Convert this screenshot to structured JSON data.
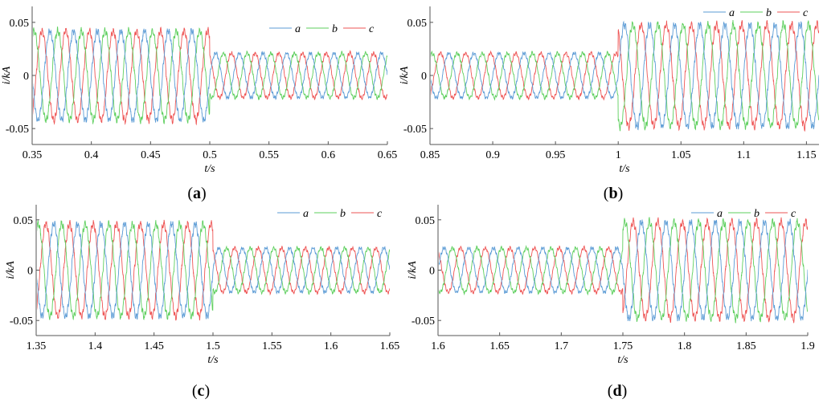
{
  "colors": {
    "a": "#5b9bd5",
    "b": "#5ecf5e",
    "c": "#ee5555",
    "axis": "#555555"
  },
  "chart_data": [
    {
      "type": "line",
      "panel": "(a)",
      "caption_letter": "a",
      "xlabel": "t/s",
      "ylabel": "i/kA",
      "xlim": [
        0.35,
        0.65
      ],
      "ylim": [
        -0.065,
        0.065
      ],
      "xticks": [
        0.35,
        0.4,
        0.45,
        0.5,
        0.55,
        0.6,
        0.65
      ],
      "xtick_labels": [
        "0.35",
        "0.4",
        "0.45",
        "0.5",
        "0.55",
        "0.6",
        "0.65"
      ],
      "yticks": [
        0.05,
        0,
        -0.05
      ],
      "ytick_labels": [
        "0.05",
        "0",
        "-0.05"
      ],
      "legend": [
        "a",
        "b",
        "c"
      ],
      "legend_position": "top-right",
      "frequency_hz": 50,
      "series": [
        {
          "name": "a",
          "phase_deg": 0,
          "segments": [
            {
              "from": 0.35,
              "to": 0.5,
              "amplitude": 0.042
            },
            {
              "from": 0.5,
              "to": 0.65,
              "amplitude": 0.021
            }
          ]
        },
        {
          "name": "b",
          "phase_deg": -120,
          "segments": [
            {
              "from": 0.35,
              "to": 0.5,
              "amplitude": 0.042
            },
            {
              "from": 0.5,
              "to": 0.65,
              "amplitude": 0.021
            }
          ]
        },
        {
          "name": "c",
          "phase_deg": 120,
          "segments": [
            {
              "from": 0.35,
              "to": 0.5,
              "amplitude": 0.042
            },
            {
              "from": 0.5,
              "to": 0.65,
              "amplitude": 0.021
            }
          ]
        }
      ]
    },
    {
      "type": "line",
      "panel": "(b)",
      "caption_letter": "b",
      "xlabel": "t/s",
      "ylabel": "i/kA",
      "xlim": [
        0.85,
        1.16
      ],
      "ylim": [
        -0.065,
        0.065
      ],
      "xticks": [
        0.85,
        0.9,
        0.95,
        1,
        1.05,
        1.1,
        1.15
      ],
      "xtick_labels": [
        "0.85",
        "0.9",
        "0.95",
        "1",
        "1.05",
        "1.1",
        "1.15"
      ],
      "yticks": [
        0.05,
        0,
        -0.05
      ],
      "ytick_labels": [
        "0.05",
        "0",
        "-0.05"
      ],
      "legend": [
        "a",
        "b",
        "c"
      ],
      "legend_position": "top-right",
      "frequency_hz": 50,
      "series": [
        {
          "name": "a",
          "phase_deg": 0,
          "segments": [
            {
              "from": 0.85,
              "to": 1.0,
              "amplitude": 0.021
            },
            {
              "from": 1.0,
              "to": 1.16,
              "amplitude": 0.048
            }
          ]
        },
        {
          "name": "b",
          "phase_deg": -120,
          "segments": [
            {
              "from": 0.85,
              "to": 1.0,
              "amplitude": 0.021
            },
            {
              "from": 1.0,
              "to": 1.16,
              "amplitude": 0.048
            }
          ]
        },
        {
          "name": "c",
          "phase_deg": 120,
          "segments": [
            {
              "from": 0.85,
              "to": 1.0,
              "amplitude": 0.021
            },
            {
              "from": 1.0,
              "to": 1.16,
              "amplitude": 0.048
            }
          ]
        }
      ]
    },
    {
      "type": "line",
      "panel": "(c)",
      "caption_letter": "c",
      "xlabel": "t/s",
      "ylabel": "i/kA",
      "xlim": [
        1.35,
        1.65
      ],
      "ylim": [
        -0.065,
        0.065
      ],
      "xticks": [
        1.35,
        1.4,
        1.45,
        1.5,
        1.55,
        1.6,
        1.65
      ],
      "xtick_labels": [
        "1.35",
        "1.4",
        "1.45",
        "1.5",
        "1.55",
        "1.6",
        "1.65"
      ],
      "yticks": [
        0.05,
        0,
        -0.05
      ],
      "ytick_labels": [
        "0.05",
        "0",
        "-0.05"
      ],
      "legend": [
        "a",
        "b",
        "c"
      ],
      "legend_position": "top-right",
      "frequency_hz": 50,
      "series": [
        {
          "name": "a",
          "phase_deg": 0,
          "segments": [
            {
              "from": 1.35,
              "to": 1.5,
              "amplitude": 0.046
            },
            {
              "from": 1.5,
              "to": 1.65,
              "amplitude": 0.022
            }
          ]
        },
        {
          "name": "b",
          "phase_deg": -120,
          "segments": [
            {
              "from": 1.35,
              "to": 1.5,
              "amplitude": 0.046
            },
            {
              "from": 1.5,
              "to": 1.65,
              "amplitude": 0.022
            }
          ]
        },
        {
          "name": "c",
          "phase_deg": 120,
          "segments": [
            {
              "from": 1.35,
              "to": 1.5,
              "amplitude": 0.046
            },
            {
              "from": 1.5,
              "to": 1.65,
              "amplitude": 0.022
            }
          ]
        }
      ]
    },
    {
      "type": "line",
      "panel": "(d)",
      "caption_letter": "d",
      "xlabel": "t/s",
      "ylabel": "i/kA",
      "xlim": [
        1.6,
        1.9
      ],
      "ylim": [
        -0.065,
        0.065
      ],
      "xticks": [
        1.6,
        1.65,
        1.7,
        1.75,
        1.8,
        1.85,
        1.9
      ],
      "xtick_labels": [
        "1.6",
        "1.65",
        "1.7",
        "1.75",
        "1.8",
        "1.85",
        "1.9"
      ],
      "yticks": [
        0.05,
        0,
        -0.05
      ],
      "ytick_labels": [
        "0.05",
        "0",
        "-0.05"
      ],
      "legend": [
        "a",
        "b",
        "c"
      ],
      "legend_position": "top-right",
      "frequency_hz": 50,
      "series": [
        {
          "name": "a",
          "phase_deg": 0,
          "segments": [
            {
              "from": 1.6,
              "to": 1.75,
              "amplitude": 0.022
            },
            {
              "from": 1.75,
              "to": 1.9,
              "amplitude": 0.048
            }
          ]
        },
        {
          "name": "b",
          "phase_deg": -120,
          "segments": [
            {
              "from": 1.6,
              "to": 1.75,
              "amplitude": 0.022
            },
            {
              "from": 1.75,
              "to": 1.9,
              "amplitude": 0.048
            }
          ]
        },
        {
          "name": "c",
          "phase_deg": 120,
          "segments": [
            {
              "from": 1.6,
              "to": 1.75,
              "amplitude": 0.022
            },
            {
              "from": 1.75,
              "to": 1.9,
              "amplitude": 0.048
            }
          ]
        }
      ]
    }
  ]
}
